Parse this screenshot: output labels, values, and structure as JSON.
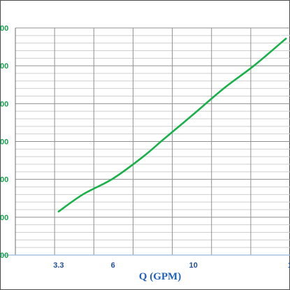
{
  "colors": {
    "frame": "#555555",
    "grid_major": "#909090",
    "grid_minor": "#cfcfcf",
    "axis_line": "#9ab8de",
    "curve": "#1ab04a",
    "ytick": "#1a9e4f",
    "xtick": "#1f4f96",
    "xlabel": "#1f5fbf"
  },
  "chart_data": {
    "type": "line",
    "title": "",
    "xlabel": "Q (GPM)",
    "ylabel": "",
    "x_ticks": [
      "3.3",
      "6",
      "10",
      "1"
    ],
    "y_ticks": [
      "00",
      "00",
      "00",
      "00",
      "00",
      "00",
      "00"
    ],
    "xlim": [
      1.15,
      14.8
    ],
    "ylim": [
      0,
      6
    ],
    "grid": true,
    "legend": "none",
    "series": [
      {
        "x": [
          3.3,
          4.5,
          6,
          7.5,
          8.5,
          10,
          11.5,
          13,
          14.6
        ],
        "y": [
          1.15,
          1.6,
          2.02,
          2.6,
          3.05,
          3.72,
          4.4,
          5.0,
          5.72
        ]
      }
    ]
  }
}
